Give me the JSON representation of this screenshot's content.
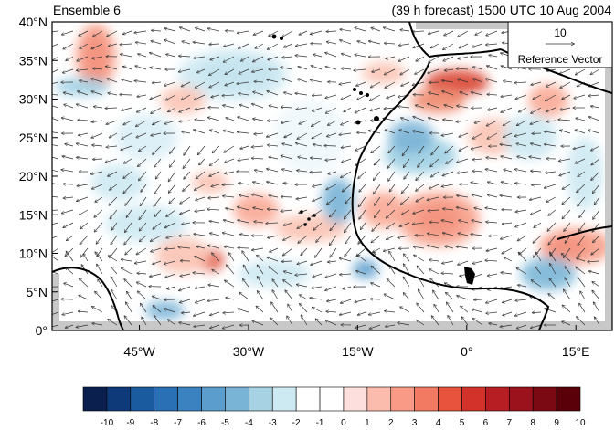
{
  "header": {
    "left_title": "Ensemble 6",
    "right_title": "(39 h forecast) 1500 UTC 10 Aug 2004"
  },
  "axes": {
    "lat_labels": [
      "0°",
      "5°N",
      "10°N",
      "15°N",
      "20°N",
      "25°N",
      "30°N",
      "35°N",
      "40°N"
    ],
    "lat_values": [
      0,
      5,
      10,
      15,
      20,
      25,
      30,
      35,
      40
    ],
    "lon_labels": [
      "45°W",
      "30°W",
      "15°W",
      "0°",
      "15°E"
    ],
    "lon_values": [
      -45,
      -30,
      -15,
      0,
      15
    ],
    "lon_range": [
      -57,
      20
    ],
    "lat_range": [
      0,
      40
    ]
  },
  "reference_vector": {
    "value": "10",
    "label": "Reference Vector"
  },
  "colorbar": {
    "labels": [
      "-10",
      "-9",
      "-8",
      "-7",
      "-6",
      "-5",
      "-4",
      "-3",
      "-2",
      "-1",
      "0",
      "1",
      "2",
      "3",
      "4",
      "5",
      "6",
      "7",
      "8",
      "9",
      "10"
    ],
    "colors": [
      "#0a1f4e",
      "#0f3a7a",
      "#1a5a9e",
      "#2a70b5",
      "#3a82c0",
      "#5b9dcc",
      "#79b3d6",
      "#a7d2e3",
      "#cdeaf3",
      "#ffffff",
      "#ffffff",
      "#fde0dd",
      "#fbbcae",
      "#f99a86",
      "#f37a62",
      "#e8533e",
      "#d3322b",
      "#b71e23",
      "#9b111c",
      "#7a0913",
      "#5a0008"
    ]
  },
  "colors": {
    "land_gray": "#c8c8c8",
    "coast": "#000000",
    "vector": "#333333"
  }
}
